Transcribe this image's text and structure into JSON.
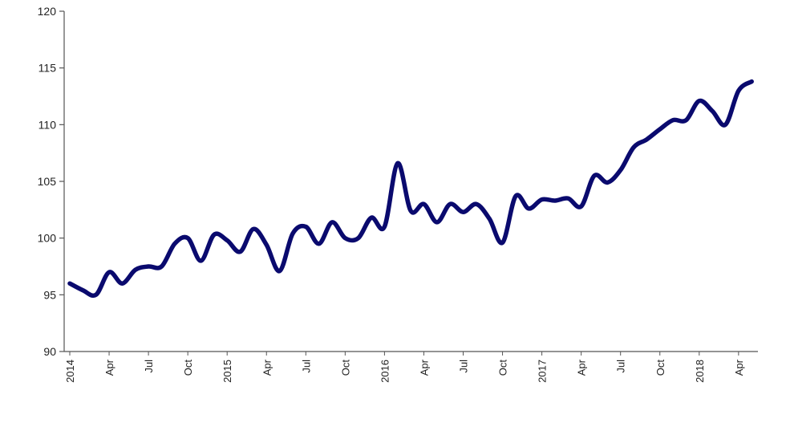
{
  "chart_data": {
    "type": "line",
    "title": "",
    "xlabel": "",
    "ylabel": "",
    "ylim": [
      90,
      120
    ],
    "yticks": [
      90,
      95,
      100,
      105,
      110,
      115,
      120
    ],
    "grid": false,
    "legend": "none",
    "colors": {
      "line": "#0a0a6e",
      "axis": "#555555"
    },
    "x_tick_labels": [
      "2014",
      "Apr",
      "Jul",
      "Oct",
      "2015",
      "Apr",
      "Jul",
      "Oct",
      "2016",
      "Apr",
      "Jul",
      "Oct",
      "2017",
      "Apr",
      "Jul",
      "Oct",
      "2018",
      "Apr"
    ],
    "x_tick_months": [
      "2014-01",
      "2014-04",
      "2014-07",
      "2014-10",
      "2015-01",
      "2015-04",
      "2015-07",
      "2015-10",
      "2016-01",
      "2016-04",
      "2016-07",
      "2016-10",
      "2017-01",
      "2017-04",
      "2017-07",
      "2017-10",
      "2018-01",
      "2018-04"
    ],
    "series": [
      {
        "x": [
          "2014-01",
          "2014-02",
          "2014-03",
          "2014-04",
          "2014-05",
          "2014-06",
          "2014-07",
          "2014-08",
          "2014-09",
          "2014-10",
          "2014-11",
          "2014-12",
          "2015-01",
          "2015-02",
          "2015-03",
          "2015-04",
          "2015-05",
          "2015-06",
          "2015-07",
          "2015-08",
          "2015-09",
          "2015-10",
          "2015-11",
          "2015-12",
          "2016-01",
          "2016-02",
          "2016-03",
          "2016-04",
          "2016-05",
          "2016-06",
          "2016-07",
          "2016-08",
          "2016-09",
          "2016-10",
          "2016-11",
          "2016-12",
          "2017-01",
          "2017-02",
          "2017-03",
          "2017-04",
          "2017-05",
          "2017-06",
          "2017-07",
          "2017-08",
          "2017-09",
          "2017-10",
          "2017-11",
          "2017-12",
          "2018-01",
          "2018-02",
          "2018-03",
          "2018-04",
          "2018-05"
        ],
        "values": [
          96.0,
          95.4,
          95.0,
          97.0,
          96.0,
          97.2,
          97.5,
          97.5,
          99.5,
          100.0,
          98.0,
          100.3,
          99.8,
          98.8,
          100.8,
          99.4,
          97.1,
          100.4,
          101.0,
          99.5,
          101.4,
          100.0,
          100.0,
          101.8,
          101.0,
          106.6,
          102.4,
          103.0,
          101.4,
          103.0,
          102.3,
          103.0,
          101.7,
          99.6,
          103.7,
          102.6,
          103.4,
          103.3,
          103.5,
          102.8,
          105.5,
          104.9,
          106.0,
          108.0,
          108.7,
          109.6,
          110.4,
          110.4,
          112.1,
          111.2,
          110.0,
          113.0,
          113.8
        ]
      }
    ]
  }
}
